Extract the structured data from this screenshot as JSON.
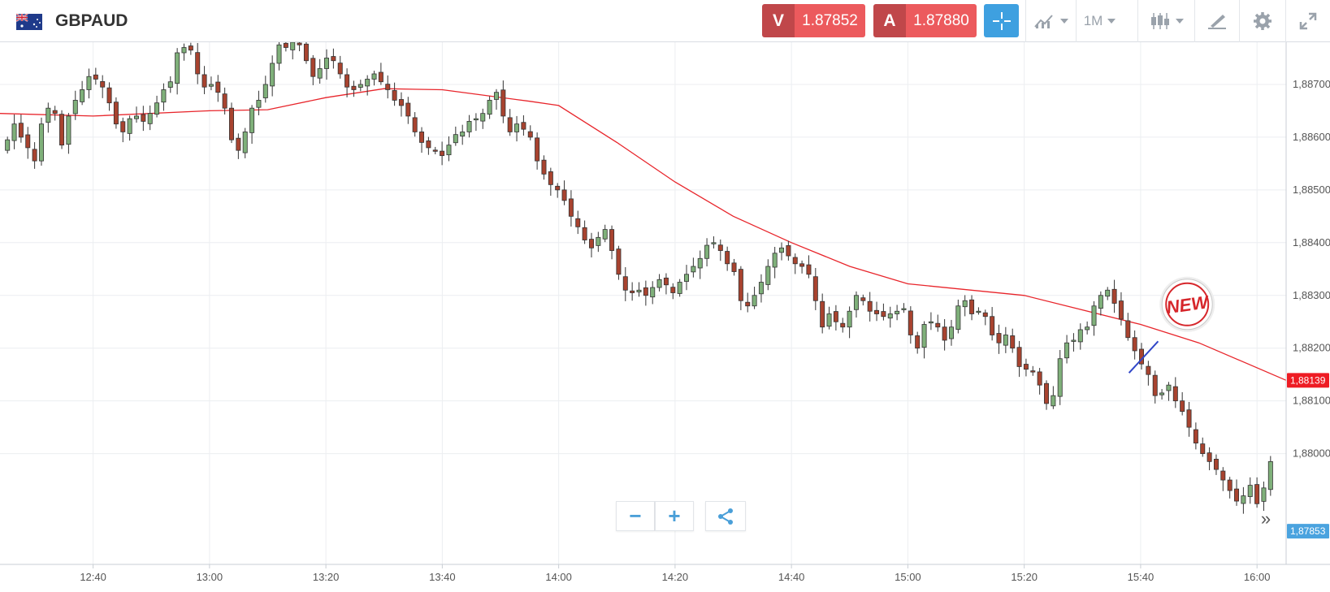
{
  "header": {
    "symbol": "GBPAUD",
    "flag_icon": "gb-au-flag-icon",
    "sell": {
      "label": "V",
      "price": "1.87852"
    },
    "buy": {
      "label": "A",
      "price": "1.87880"
    },
    "colors": {
      "tag": "#c0474a",
      "price": "#ec5a5d",
      "accent": "#3ea0e0"
    },
    "toolbar": {
      "chart_type_icon": "line-chart-icon",
      "timeframe": "1M",
      "candles_icon": "candlestick-icon",
      "draw_icon": "drawing-tools-icon",
      "settings_icon": "gear-icon",
      "expand_icon": "expand-icon"
    }
  },
  "chart_data": {
    "type": "candlestick",
    "symbol": "GBPAUD",
    "timeframe": "1M",
    "y_ticks": [
      "1,88000",
      "1,88100",
      "1,88200",
      "1,88300",
      "1,88400",
      "1,88500",
      "1,88600",
      "1,88700"
    ],
    "ylim": [
      1.8779,
      1.8878
    ],
    "x_ticks": [
      "12:40",
      "13:00",
      "13:20",
      "13:40",
      "14:00",
      "14:20",
      "14:40",
      "15:00",
      "15:20",
      "15:40",
      "16:00"
    ],
    "xlim": [
      "12:24",
      "16:05"
    ],
    "grid": true,
    "closes": [
      1.88595,
      1.88625,
      1.886,
      1.8858,
      1.88555,
      1.88625,
      1.88655,
      1.88645,
      1.88585,
      1.8864,
      1.8867,
      1.8869,
      1.88715,
      1.8871,
      1.88695,
      1.88665,
      1.88625,
      1.8861,
      1.88635,
      1.8864,
      1.8863,
      1.88645,
      1.88665,
      1.8869,
      1.88705,
      1.8876,
      1.8877,
      1.88765,
      1.8872,
      1.88695,
      1.887,
      1.88685,
      1.88655,
      1.88595,
      1.88575,
      1.8861,
      1.88655,
      1.8867,
      1.887,
      1.8874,
      1.88775,
      1.8877,
      1.8878,
      1.88775,
      1.88745,
      1.88715,
      1.8873,
      1.8875,
      1.88745,
      1.8872,
      1.88695,
      1.8869,
      1.887,
      1.8871,
      1.8872,
      1.88705,
      1.8869,
      1.8867,
      1.8866,
      1.8864,
      1.8861,
      1.8859,
      1.8858,
      1.88575,
      1.88565,
      1.88585,
      1.88605,
      1.8861,
      1.8863,
      1.88635,
      1.88645,
      1.8867,
      1.88685,
      1.8864,
      1.8861,
      1.88625,
      1.88615,
      1.886,
      1.88555,
      1.8853,
      1.8851,
      1.885,
      1.8848,
      1.8845,
      1.8843,
      1.88405,
      1.8839,
      1.8841,
      1.88425,
      1.88385,
      1.8834,
      1.8831,
      1.88305,
      1.8831,
      1.883,
      1.88315,
      1.8833,
      1.8832,
      1.88305,
      1.88325,
      1.8834,
      1.88355,
      1.8837,
      1.88395,
      1.884,
      1.88385,
      1.8836,
      1.88345,
      1.8829,
      1.8828,
      1.883,
      1.88325,
      1.88355,
      1.8838,
      1.8839,
      1.88375,
      1.8836,
      1.88355,
      1.8834,
      1.8829,
      1.8824,
      1.88265,
      1.8825,
      1.8824,
      1.8827,
      1.883,
      1.8829,
      1.8827,
      1.88265,
      1.8826,
      1.88265,
      1.8827,
      1.88275,
      1.88225,
      1.882,
      1.88245,
      1.8825,
      1.8824,
      1.88215,
      1.8824,
      1.8828,
      1.8829,
      1.88265,
      1.8827,
      1.8826,
      1.88225,
      1.8821,
      1.88225,
      1.882,
      1.88165,
      1.8816,
      1.88155,
      1.8813,
      1.88095,
      1.8811,
      1.8818,
      1.8821,
      1.88215,
      1.88235,
      1.8824,
      1.8828,
      1.883,
      1.8831,
      1.88285,
      1.88255,
      1.8822,
      1.88195,
      1.8817,
      1.8815,
      1.8811,
      1.88115,
      1.8813,
      1.881,
      1.8808,
      1.8805,
      1.8802,
      1.88,
      1.87985,
      1.8797,
      1.8795,
      1.8793,
      1.8791,
      1.8792,
      1.8794,
      1.87905,
      1.87935,
      1.87985
    ],
    "moving_average": [
      {
        "x": "12:24",
        "y": 1.88645
      },
      {
        "x": "12:40",
        "y": 1.8864
      },
      {
        "x": "13:00",
        "y": 1.8865
      },
      {
        "x": "13:10",
        "y": 1.88652
      },
      {
        "x": "13:20",
        "y": 1.88675
      },
      {
        "x": "13:30",
        "y": 1.88692
      },
      {
        "x": "13:40",
        "y": 1.8869
      },
      {
        "x": "13:55",
        "y": 1.88668
      },
      {
        "x": "14:00",
        "y": 1.8866
      },
      {
        "x": "14:10",
        "y": 1.8859
      },
      {
        "x": "14:20",
        "y": 1.88515
      },
      {
        "x": "14:30",
        "y": 1.8845
      },
      {
        "x": "14:40",
        "y": 1.884
      },
      {
        "x": "14:50",
        "y": 1.88355
      },
      {
        "x": "15:00",
        "y": 1.88322
      },
      {
        "x": "15:20",
        "y": 1.883
      },
      {
        "x": "15:40",
        "y": 1.88245
      },
      {
        "x": "15:50",
        "y": 1.8821
      },
      {
        "x": "16:05",
        "y": 1.88139
      }
    ],
    "trendline": {
      "from": {
        "x": "15:38",
        "y": 1.88153
      },
      "to": {
        "x": "15:43",
        "y": 1.88213
      }
    },
    "price_labels": {
      "ma_value": "1,88139",
      "last_price": "1,87853"
    },
    "colors": {
      "up": "#7fb07a",
      "down": "#a8432f",
      "ma": "#e8252b",
      "trend": "#3046c8",
      "ma_label": "#ee1c24",
      "last_label": "#4aa3df"
    },
    "badge_text": "NEW"
  },
  "controls": {
    "zoom_out": "−",
    "zoom_in": "+",
    "share_icon": "share-icon",
    "scroll_right": "»"
  }
}
